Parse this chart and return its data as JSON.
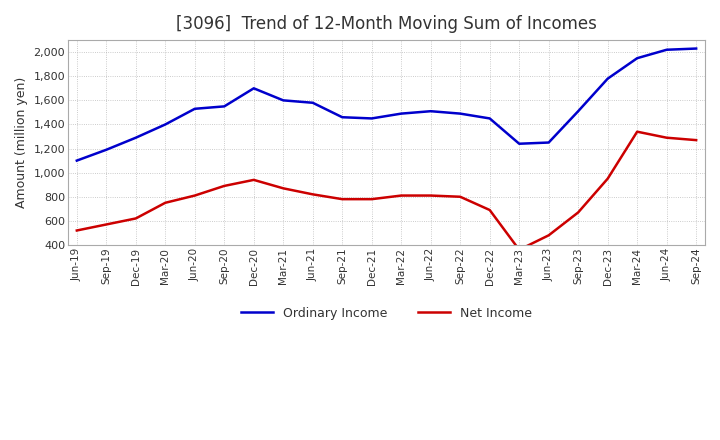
{
  "title": "[3096]  Trend of 12-Month Moving Sum of Incomes",
  "ylabel": "Amount (million yen)",
  "background_color": "#ffffff",
  "plot_bg_color": "#ffffff",
  "grid_color": "#aaaaaa",
  "x_labels": [
    "Jun-19",
    "Sep-19",
    "Dec-19",
    "Mar-20",
    "Jun-20",
    "Sep-20",
    "Dec-20",
    "Mar-21",
    "Jun-21",
    "Sep-21",
    "Dec-21",
    "Mar-22",
    "Jun-22",
    "Sep-22",
    "Dec-22",
    "Mar-23",
    "Jun-23",
    "Sep-23",
    "Dec-23",
    "Mar-24",
    "Jun-24",
    "Sep-24"
  ],
  "ordinary_income": [
    1100,
    1190,
    1290,
    1400,
    1530,
    1550,
    1700,
    1600,
    1580,
    1460,
    1450,
    1490,
    1510,
    1490,
    1450,
    1240,
    1250,
    1510,
    1780,
    1950,
    2020,
    2030
  ],
  "net_income": [
    520,
    570,
    620,
    750,
    810,
    890,
    940,
    870,
    820,
    780,
    780,
    810,
    810,
    800,
    690,
    360,
    480,
    670,
    950,
    1340,
    1290,
    1270
  ],
  "ordinary_color": "#0000cc",
  "net_color": "#cc0000",
  "ylim_min": 400,
  "ylim_max": 2100,
  "yticks": [
    400,
    600,
    800,
    1000,
    1200,
    1400,
    1600,
    1800,
    2000
  ]
}
